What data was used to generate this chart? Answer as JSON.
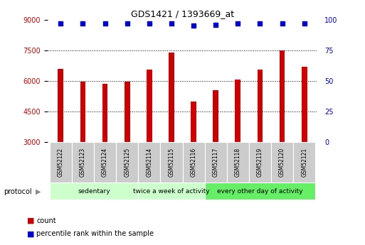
{
  "title": "GDS1421 / 1393669_at",
  "samples": [
    "GSM52122",
    "GSM52123",
    "GSM52124",
    "GSM52125",
    "GSM52114",
    "GSM52115",
    "GSM52116",
    "GSM52117",
    "GSM52118",
    "GSM52119",
    "GSM52120",
    "GSM52121"
  ],
  "counts": [
    6600,
    5950,
    5850,
    5950,
    6550,
    7400,
    5000,
    5550,
    6050,
    6550,
    7500,
    6700
  ],
  "percentiles": [
    97,
    97,
    97,
    97,
    97,
    97,
    95,
    96,
    97,
    97,
    97,
    97
  ],
  "ylim_left": [
    3000,
    9000
  ],
  "ylim_right": [
    0,
    100
  ],
  "yticks_left": [
    3000,
    4500,
    6000,
    7500,
    9000
  ],
  "yticks_right": [
    0,
    25,
    50,
    75,
    100
  ],
  "bar_color": "#cc0000",
  "dot_color": "#0000cc",
  "bar_width": 0.25,
  "bar_bottom": 3000,
  "grid_color": "#000000",
  "bg_color": "#ffffff",
  "left_axis_color": "#cc0000",
  "right_axis_color": "#0000cc",
  "legend_count_label": "count",
  "legend_pct_label": "percentile rank within the sample",
  "group_labels": [
    "sedentary",
    "twice a week of activity",
    "every other day of activity"
  ],
  "group_starts": [
    0,
    4,
    7
  ],
  "group_ends": [
    3,
    6,
    11
  ],
  "group_colors": [
    "#ccffcc",
    "#ccffcc",
    "#66ee66"
  ],
  "sample_box_color": "#cccccc",
  "title_fontsize": 9,
  "tick_fontsize": 7,
  "label_fontsize": 7,
  "group_fontsize": 6.5
}
